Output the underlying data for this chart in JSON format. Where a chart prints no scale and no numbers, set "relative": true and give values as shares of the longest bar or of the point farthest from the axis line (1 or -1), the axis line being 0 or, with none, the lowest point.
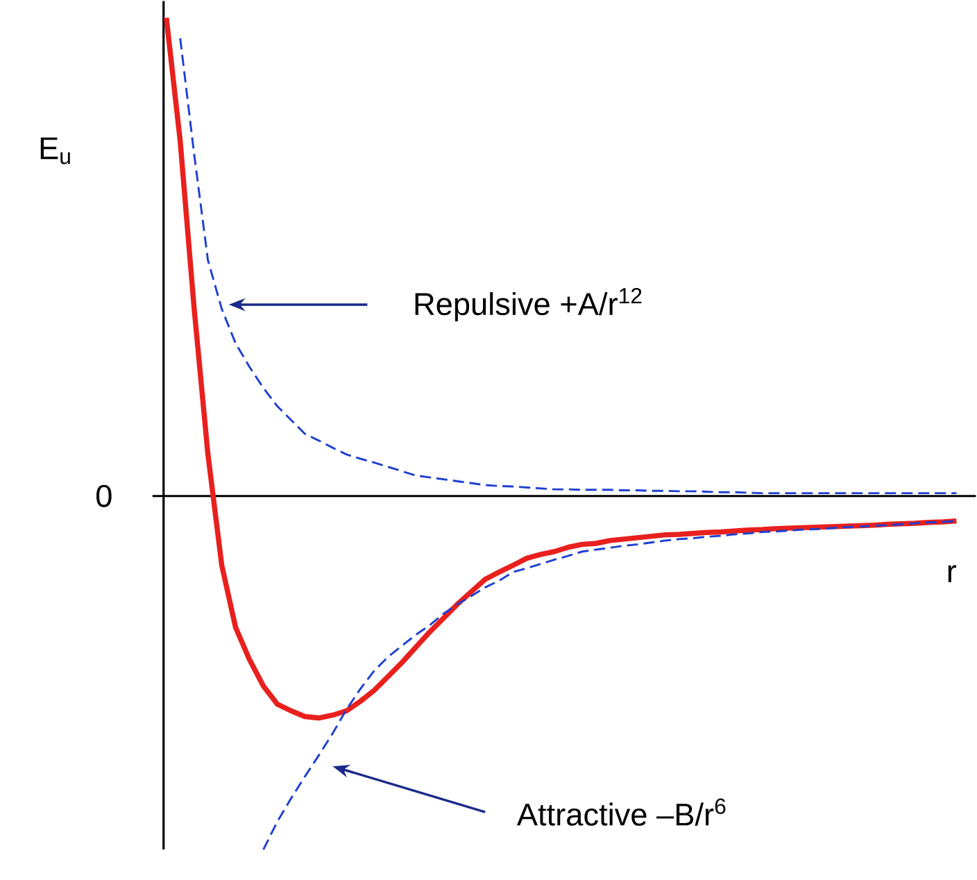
{
  "chart_data": {
    "type": "line",
    "relative": true,
    "xlabel": "r",
    "ylabel": "E$_{u}$",
    "categories": [
      null,
      null,
      null,
      null,
      null,
      null,
      null,
      null,
      null,
      null,
      null,
      null,
      null,
      null,
      null,
      null,
      null,
      null,
      null,
      null,
      null,
      null,
      null,
      null,
      null,
      null,
      null,
      null,
      null,
      null,
      null,
      null,
      null,
      null,
      null,
      null,
      null,
      null,
      null,
      null,
      null,
      null,
      null,
      null,
      null,
      null,
      null,
      null,
      null,
      null,
      null,
      null,
      null,
      null,
      null,
      null,
      null,
      null
    ],
    "series": [
      {
        "color": "#e8201e",
        "line_style": "solid",
        "values": [
          1,
          0.742,
          0.394,
          0.087,
          -0.145,
          -0.275,
          -0.342,
          -0.397,
          -0.435,
          -0.449,
          -0.461,
          -0.464,
          -0.458,
          -0.449,
          -0.429,
          -0.406,
          -0.377,
          -0.348,
          -0.316,
          -0.284,
          -0.255,
          -0.226,
          -0.2,
          -0.174,
          -0.159,
          -0.145,
          -0.13,
          -0.122,
          -0.116,
          -0.107,
          -0.101,
          -0.099,
          -0.093,
          -0.09,
          -0.087,
          -0.084,
          -0.081,
          -0.08,
          -0.078,
          -0.076,
          -0.075,
          -0.073,
          -0.071,
          -0.07,
          -0.068,
          -0.067,
          -0.066,
          -0.065,
          -0.064,
          -0.063,
          -0.062,
          -0.061,
          -0.059,
          -0.058,
          -0.057,
          -0.055,
          -0.054,
          -0.052
        ]
      },
      {
        "color": "#1f3fd0",
        "line_style": "dashed",
        "values": [
          null,
          0.957,
          0.716,
          0.493,
          0.391,
          0.319,
          0.27,
          0.226,
          0.188,
          0.159,
          0.13,
          0.116,
          0.101,
          0.087,
          0.078,
          0.07,
          0.061,
          0.052,
          0.043,
          0.039,
          0.035,
          0.031,
          0.027,
          0.023,
          0.021,
          0.02,
          0.018,
          0.016,
          0.014,
          0.014,
          0.013,
          0.013,
          0.013,
          0.012,
          0.012,
          0.011,
          0.011,
          0.01,
          0.01,
          0.009,
          0.008,
          0.008,
          0.007,
          0.006,
          0.006,
          0.006,
          0.006,
          0.006,
          0.006,
          0.006,
          0.006,
          0.006,
          0.006,
          0.006,
          0.006,
          0.006,
          0.006,
          0.006
        ]
      },
      {
        "color": "#1f3fd0",
        "line_style": "dashed",
        "values": [
          null,
          null,
          null,
          null,
          null,
          null,
          null,
          -0.739,
          -0.681,
          -0.632,
          -0.586,
          -0.542,
          -0.496,
          -0.446,
          -0.403,
          -0.365,
          -0.336,
          -0.313,
          -0.29,
          -0.27,
          -0.246,
          -0.226,
          -0.209,
          -0.191,
          -0.177,
          -0.159,
          -0.151,
          -0.142,
          -0.133,
          -0.125,
          -0.116,
          -0.112,
          -0.108,
          -0.104,
          -0.101,
          -0.097,
          -0.093,
          -0.09,
          -0.088,
          -0.085,
          -0.083,
          -0.08,
          -0.078,
          -0.075,
          -0.074,
          -0.072,
          -0.07,
          -0.069,
          -0.067,
          -0.065,
          -0.064,
          -0.062,
          -0.061,
          -0.059,
          -0.057,
          -0.055,
          -0.054,
          -0.052
        ]
      }
    ],
    "annotations": [
      "0",
      "Repulsive  +A/r$^{12}$",
      "Attractive –B/r$^{6}$"
    ]
  }
}
